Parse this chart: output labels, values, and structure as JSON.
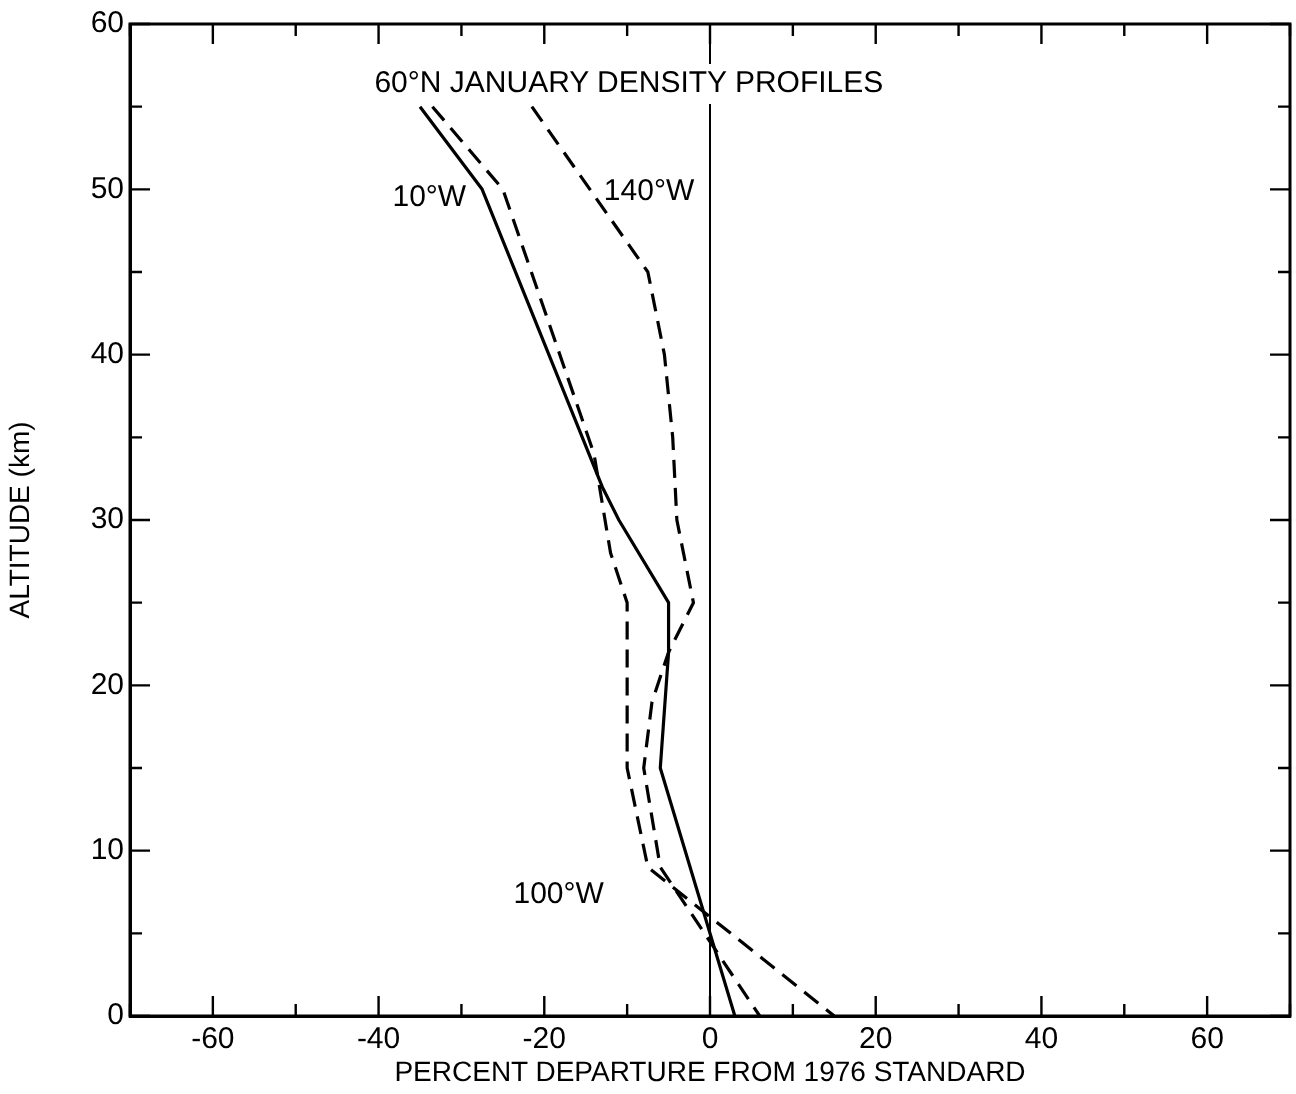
{
  "chart_data": {
    "type": "line",
    "title": "60°N JANUARY DENSITY PROFILES",
    "xlabel": "PERCENT DEPARTURE FROM 1976 STANDARD",
    "ylabel": "ALTITUDE (km)",
    "xlim": [
      -70,
      70
    ],
    "xticks": [
      {
        "value": -70,
        "label": null
      },
      -60,
      {
        "value": -50,
        "label": null
      },
      -40,
      {
        "value": -30,
        "label": null
      },
      -20,
      {
        "value": -10,
        "label": null
      },
      0,
      {
        "value": 10,
        "label": null
      },
      20,
      {
        "value": 30,
        "label": null
      },
      40,
      {
        "value": 50,
        "label": null
      },
      60,
      {
        "value": 70,
        "label": null
      }
    ],
    "ylim": [
      0,
      60
    ],
    "yticks": [
      0,
      {
        "value": 5,
        "label": null
      },
      10,
      {
        "value": 15,
        "label": null
      },
      20,
      {
        "value": 25,
        "label": null
      },
      30,
      {
        "value": 35,
        "label": null
      },
      40,
      {
        "value": 45,
        "label": null
      },
      50,
      {
        "value": 55,
        "label": null
      },
      60
    ],
    "grid": false,
    "legend": false,
    "marker": "none",
    "ref_lines": [
      {
        "axis": "x",
        "value": 0,
        "color": "#000000",
        "line_style": "solid"
      }
    ],
    "series": [
      {
        "name": "10°W",
        "color": "#000000",
        "line_style": "solid",
        "x": [
          -35,
          -27.5,
          -13,
          -11,
          -5,
          -5,
          -6,
          3
        ],
        "values": [
          55,
          50,
          32,
          30,
          25,
          22,
          15,
          0
        ]
      },
      {
        "name": "100°W",
        "color": "#000000",
        "line_style": "dashed",
        "x": [
          -33.5,
          -25,
          -14,
          -12,
          -10,
          -10,
          -7.5,
          15
        ],
        "values": [
          55,
          50,
          34,
          28,
          25,
          15,
          9,
          0
        ]
      },
      {
        "name": "140°W",
        "color": "#000000",
        "line_style": "dashed",
        "x": [
          -21.5,
          -7.5,
          -5.5,
          -4.5,
          -4,
          -2,
          -5,
          -7,
          -8,
          -6,
          6
        ],
        "values": [
          55,
          45,
          40,
          35,
          30,
          25,
          22,
          19,
          15,
          9,
          0
        ]
      }
    ]
  }
}
